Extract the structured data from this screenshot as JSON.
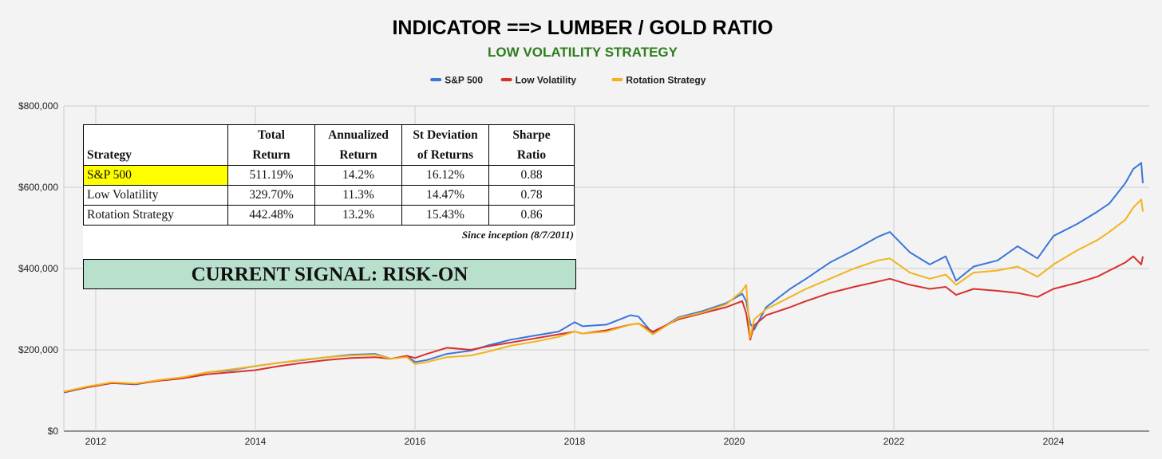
{
  "colors": {
    "sp500": "#3a76d8",
    "lowvol": "#d8302c",
    "rotation": "#f2b41c",
    "subtitle": "#2e7d1e",
    "highlight": "#ffff00",
    "signal_bg": "#b8e0cc"
  },
  "chart_data": {
    "type": "line",
    "title": "INDICATOR ==> LUMBER / GOLD RATIO",
    "subtitle": "LOW VOLATILITY STRATEGY",
    "xlabel": "",
    "ylabel": "",
    "xlim": [
      2011.6,
      2025.2
    ],
    "ylim": [
      0,
      800000
    ],
    "yticks": [
      0,
      200000,
      400000,
      600000,
      800000
    ],
    "ytick_labels": [
      "$0",
      "$200,000",
      "$400,000",
      "$600,000",
      "$800,000"
    ],
    "xticks": [
      2012,
      2014,
      2016,
      2018,
      2020,
      2022,
      2024
    ],
    "xtick_labels": [
      "2012",
      "2014",
      "2016",
      "2018",
      "2020",
      "2022",
      "2024"
    ],
    "grid": true,
    "legend_position": "top-center",
    "series": [
      {
        "name": "S&P 500",
        "key": "sp500",
        "x": [
          2011.6,
          2011.9,
          2012.2,
          2012.5,
          2012.8,
          2013.1,
          2013.4,
          2013.7,
          2014.0,
          2014.3,
          2014.6,
          2014.9,
          2015.2,
          2015.5,
          2015.7,
          2015.9,
          2016.0,
          2016.15,
          2016.4,
          2016.7,
          2016.9,
          2017.2,
          2017.5,
          2017.8,
          2018.0,
          2018.1,
          2018.4,
          2018.7,
          2018.8,
          2018.98,
          2019.3,
          2019.6,
          2019.9,
          2020.1,
          2020.15,
          2020.2,
          2020.25,
          2020.4,
          2020.7,
          2020.9,
          2021.2,
          2021.5,
          2021.8,
          2021.95,
          2022.2,
          2022.45,
          2022.65,
          2022.78,
          2023.0,
          2023.3,
          2023.55,
          2023.8,
          2024.0,
          2024.3,
          2024.55,
          2024.7,
          2024.9,
          2025.0,
          2025.1,
          2025.12
        ],
        "y": [
          95000,
          108000,
          118000,
          115000,
          125000,
          132000,
          145000,
          150000,
          160000,
          168000,
          175000,
          182000,
          188000,
          190000,
          178000,
          185000,
          170000,
          175000,
          190000,
          198000,
          210000,
          225000,
          235000,
          245000,
          268000,
          258000,
          262000,
          285000,
          282000,
          240000,
          280000,
          295000,
          315000,
          338000,
          320000,
          265000,
          250000,
          305000,
          350000,
          375000,
          415000,
          445000,
          478000,
          490000,
          440000,
          410000,
          430000,
          370000,
          405000,
          420000,
          455000,
          425000,
          480000,
          510000,
          540000,
          560000,
          610000,
          645000,
          660000,
          610000
        ]
      },
      {
        "name": "Low Volatility",
        "key": "lowvol",
        "x": [
          2011.6,
          2011.9,
          2012.2,
          2012.5,
          2012.8,
          2013.1,
          2013.4,
          2013.7,
          2014.0,
          2014.3,
          2014.6,
          2014.9,
          2015.2,
          2015.5,
          2015.7,
          2015.9,
          2016.0,
          2016.15,
          2016.4,
          2016.7,
          2016.9,
          2017.2,
          2017.5,
          2017.8,
          2018.0,
          2018.1,
          2018.4,
          2018.7,
          2018.8,
          2018.98,
          2019.3,
          2019.6,
          2019.9,
          2020.1,
          2020.15,
          2020.2,
          2020.25,
          2020.4,
          2020.7,
          2020.9,
          2021.2,
          2021.5,
          2021.8,
          2021.95,
          2022.2,
          2022.45,
          2022.65,
          2022.78,
          2023.0,
          2023.3,
          2023.55,
          2023.8,
          2024.0,
          2024.3,
          2024.55,
          2024.7,
          2024.9,
          2025.0,
          2025.1,
          2025.12
        ],
        "y": [
          96000,
          108000,
          118000,
          116000,
          124000,
          130000,
          140000,
          145000,
          150000,
          160000,
          168000,
          175000,
          180000,
          182000,
          178000,
          185000,
          180000,
          190000,
          205000,
          200000,
          208000,
          218000,
          228000,
          238000,
          245000,
          240000,
          248000,
          262000,
          265000,
          245000,
          275000,
          290000,
          305000,
          320000,
          290000,
          225000,
          260000,
          285000,
          305000,
          320000,
          340000,
          355000,
          368000,
          375000,
          360000,
          350000,
          355000,
          335000,
          350000,
          345000,
          340000,
          330000,
          350000,
          365000,
          380000,
          395000,
          415000,
          430000,
          410000,
          430000
        ]
      },
      {
        "name": "Rotation Strategy",
        "key": "rotation",
        "x": [
          2011.6,
          2011.9,
          2012.2,
          2012.5,
          2012.8,
          2013.1,
          2013.4,
          2013.7,
          2014.0,
          2014.3,
          2014.6,
          2014.9,
          2015.2,
          2015.5,
          2015.7,
          2015.9,
          2016.0,
          2016.15,
          2016.4,
          2016.7,
          2016.9,
          2017.2,
          2017.5,
          2017.8,
          2018.0,
          2018.1,
          2018.4,
          2018.7,
          2018.8,
          2018.98,
          2019.3,
          2019.6,
          2019.9,
          2020.1,
          2020.15,
          2020.2,
          2020.25,
          2020.4,
          2020.7,
          2020.9,
          2021.2,
          2021.5,
          2021.8,
          2021.95,
          2022.2,
          2022.45,
          2022.65,
          2022.78,
          2023.0,
          2023.3,
          2023.55,
          2023.8,
          2024.0,
          2024.3,
          2024.55,
          2024.7,
          2024.9,
          2025.0,
          2025.1,
          2025.12
        ],
        "y": [
          97000,
          110000,
          120000,
          117000,
          126000,
          133000,
          145000,
          152000,
          160000,
          168000,
          176000,
          182000,
          186000,
          188000,
          178000,
          182000,
          165000,
          170000,
          182000,
          186000,
          195000,
          210000,
          220000,
          232000,
          245000,
          240000,
          245000,
          262000,
          265000,
          238000,
          278000,
          292000,
          312000,
          345000,
          360000,
          230000,
          275000,
          300000,
          330000,
          350000,
          375000,
          400000,
          420000,
          425000,
          390000,
          375000,
          385000,
          360000,
          390000,
          395000,
          405000,
          380000,
          410000,
          445000,
          470000,
          490000,
          520000,
          550000,
          570000,
          540000
        ]
      }
    ]
  },
  "table": {
    "headers": [
      {
        "l1": "",
        "l2": "Strategy"
      },
      {
        "l1": "Total",
        "l2": "Return"
      },
      {
        "l1": "Annualized",
        "l2": "Return"
      },
      {
        "l1": "St Deviation",
        "l2": "of Returns"
      },
      {
        "l1": "Sharpe",
        "l2": "Ratio"
      }
    ],
    "rows": [
      {
        "strategy": "S&P 500",
        "total_return": "511.19%",
        "annualized": "14.2%",
        "st_dev": "16.12%",
        "sharpe": "0.88"
      },
      {
        "strategy": "Low Volatility",
        "total_return": "329.70%",
        "annualized": "11.3%",
        "st_dev": "14.47%",
        "sharpe": "0.78"
      },
      {
        "strategy": "Rotation Strategy",
        "total_return": "442.48%",
        "annualized": "13.2%",
        "st_dev": "15.43%",
        "sharpe": "0.86"
      }
    ],
    "note": "Since inception (8/7/2011)",
    "signal": "CURRENT SIGNAL: RISK-ON"
  }
}
